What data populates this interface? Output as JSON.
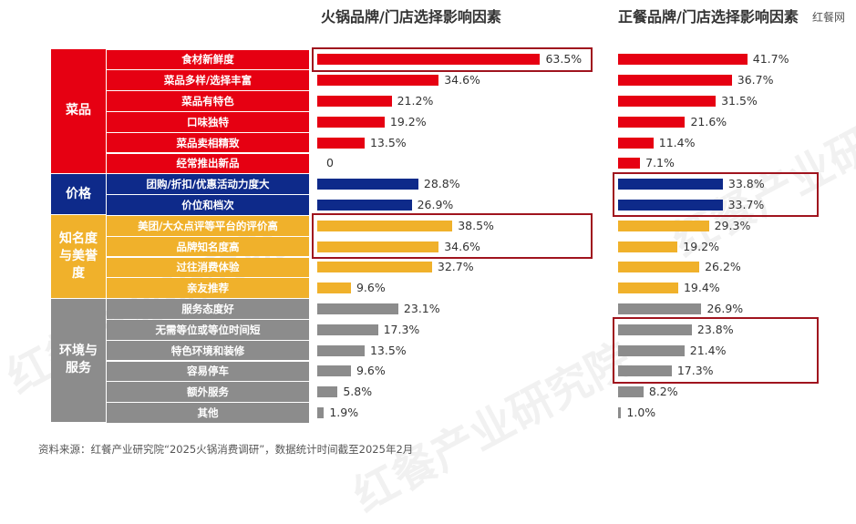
{
  "watermark_top_right": "红餐网",
  "watermark_text": "红餐产业研究院",
  "source_note": "资料来源：红餐产业研究院“2025火锅消费调研”，数据统计时间截至2025年2月",
  "colors": {
    "菜品": "#e60012",
    "价格": "#0e2a8a",
    "知名度与美誉度": "#f0b12b",
    "环境与服务": "#8c8c8c",
    "highlight": "#a0141e"
  },
  "categories": [
    {
      "label": "菜品",
      "color_key": "菜品",
      "rows": 6
    },
    {
      "label": "价格",
      "color_key": "价格",
      "rows": 2
    },
    {
      "label": "知名度与美誉度",
      "color_key": "知名度与美誉度",
      "rows": 4
    },
    {
      "label": "环境与服务",
      "color_key": "环境与服务",
      "rows": 6
    }
  ],
  "chart_data": [
    {
      "type": "bar",
      "orientation": "horizontal",
      "title": "火锅品牌/门店选择影响因素",
      "unit": "%",
      "categories": [
        "食材新鲜度",
        "菜品多样/选择丰富",
        "菜品有特色",
        "口味独特",
        "菜品卖相精致",
        "经常推出新品",
        "团购/折扣/优惠活动力度大",
        "价位和档次",
        "美团/大众点评等平台的评价高",
        "品牌知名度高",
        "过往消费体验",
        "亲友推荐",
        "服务态度好",
        "无需等位或等位时间短",
        "特色环境和装修",
        "容易停车",
        "额外服务",
        "其他"
      ],
      "values": [
        63.5,
        34.6,
        21.2,
        19.2,
        13.5,
        0,
        28.8,
        26.9,
        38.5,
        34.6,
        32.7,
        9.6,
        23.1,
        17.3,
        13.5,
        9.6,
        5.8,
        1.9
      ],
      "labels": [
        "63.5%",
        "34.6%",
        "21.2%",
        "19.2%",
        "13.5%",
        "0",
        "28.8%",
        "26.9%",
        "38.5%",
        "34.6%",
        "32.7%",
        "9.6%",
        "23.1%",
        "17.3%",
        "13.5%",
        "9.6%",
        "5.8%",
        "1.9%"
      ],
      "highlighted_groups": [
        [
          0,
          0
        ],
        [
          8,
          9
        ]
      ]
    },
    {
      "type": "bar",
      "orientation": "horizontal",
      "title": "正餐品牌/门店选择影响因素",
      "unit": "%",
      "categories": [
        "食材新鲜度",
        "菜品多样/选择丰富",
        "菜品有特色",
        "口味独特",
        "菜品卖相精致",
        "经常推出新品",
        "团购/折扣/优惠活动力度大",
        "价位和档次",
        "美团/大众点评等平台的评价高",
        "品牌知名度高",
        "过往消费体验",
        "亲友推荐",
        "服务态度好",
        "无需等位或等位时间短",
        "特色环境和装修",
        "容易停车",
        "额外服务",
        "其他"
      ],
      "values": [
        41.7,
        36.7,
        31.5,
        21.6,
        11.4,
        7.1,
        33.8,
        33.7,
        29.3,
        19.2,
        26.2,
        19.4,
        26.9,
        23.8,
        21.4,
        17.3,
        8.2,
        1.0
      ],
      "labels": [
        "41.7%",
        "36.7%",
        "31.5%",
        "21.6%",
        "11.4%",
        "7.1%",
        "33.8%",
        "33.7%",
        "29.3%",
        "19.2%",
        "26.2%",
        "19.4%",
        "26.9%",
        "23.8%",
        "21.4%",
        "17.3%",
        "8.2%",
        "1.0%"
      ],
      "highlighted_groups": [
        [
          6,
          7
        ],
        [
          13,
          15
        ]
      ]
    }
  ]
}
